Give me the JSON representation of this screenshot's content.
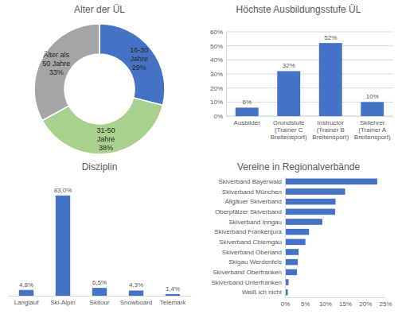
{
  "chart_data": [
    {
      "type": "pie",
      "title": "Alter der ÜL",
      "categories": [
        "16-30 Jahre",
        "31-50 Jahre",
        "Älter als 50 Jahre"
      ],
      "values": [
        29,
        38,
        33
      ],
      "value_labels": [
        "29%",
        "38%",
        "33%"
      ],
      "colors": [
        "#4472c4",
        "#a9d18e",
        "#a5a5a5"
      ],
      "data_labels": true
    },
    {
      "type": "bar",
      "title": "Höchste Ausbildungsstufe ÜL",
      "categories": [
        "Ausbilder",
        "Grundstufe (Trainer C Breitensport)",
        "Instructor (Trainer B Breitensport)",
        "Skilehrer (Trainer A Breitensport)"
      ],
      "values": [
        6,
        32,
        52,
        10
      ],
      "value_labels": [
        "6%",
        "32%",
        "52%",
        "10%"
      ],
      "color": "#4472c4",
      "ylim": [
        0,
        60
      ],
      "yticks": [
        {
          "value": 0,
          "label": "0%"
        },
        {
          "value": 10,
          "label": "10%"
        },
        {
          "value": 20,
          "label": "20%"
        },
        {
          "value": 30,
          "label": "30%"
        },
        {
          "value": 40,
          "label": "40%"
        },
        {
          "value": 50,
          "label": "50%"
        },
        {
          "value": 60,
          "label": "60%"
        }
      ],
      "grid": true,
      "data_labels": true
    },
    {
      "type": "bar",
      "title": "Disziplin",
      "categories": [
        "Langlauf",
        "Ski-Alpin",
        "Skitour",
        "Snowboard",
        "Telemark"
      ],
      "values": [
        4.8,
        83.0,
        6.5,
        4.3,
        1.4
      ],
      "value_labels": [
        "4,8%",
        "83,0%",
        "6,5%",
        "4,3%",
        "1,4%"
      ],
      "color": "#4472c4",
      "data_labels": true,
      "tick_labels": "x"
    },
    {
      "type": "bar",
      "orientation": "horizontal",
      "title": "Vereine in Regionalverbände",
      "categories": [
        "Skiverband Bayerwald",
        "Skiverband München",
        "Allgäuer Skiverband",
        "Oberpfälzer Skiverband",
        "Skiverband Inngau",
        "Skiverband Frankenjura",
        "Skiverband Chiemgau",
        "Skiverband Oberland",
        "Skigau Werdenfels",
        "Skiverband Oberfranken",
        "Skiverband Unterfranken",
        "Weiß ich nicht"
      ],
      "values": [
        23,
        15,
        12.6,
        12.5,
        9.3,
        6,
        5.1,
        3.4,
        3.2,
        3,
        0.9,
        0.7
      ],
      "color": "#4472c4",
      "xlim": [
        0,
        25
      ],
      "xticks": [
        {
          "value": 0,
          "label": "0%"
        },
        {
          "value": 5,
          "label": "5%"
        },
        {
          "value": 10,
          "label": "10%"
        },
        {
          "value": 15,
          "label": "15%"
        },
        {
          "value": 20,
          "label": "20%"
        },
        {
          "value": 25,
          "label": "25%"
        }
      ],
      "grid": false
    }
  ]
}
